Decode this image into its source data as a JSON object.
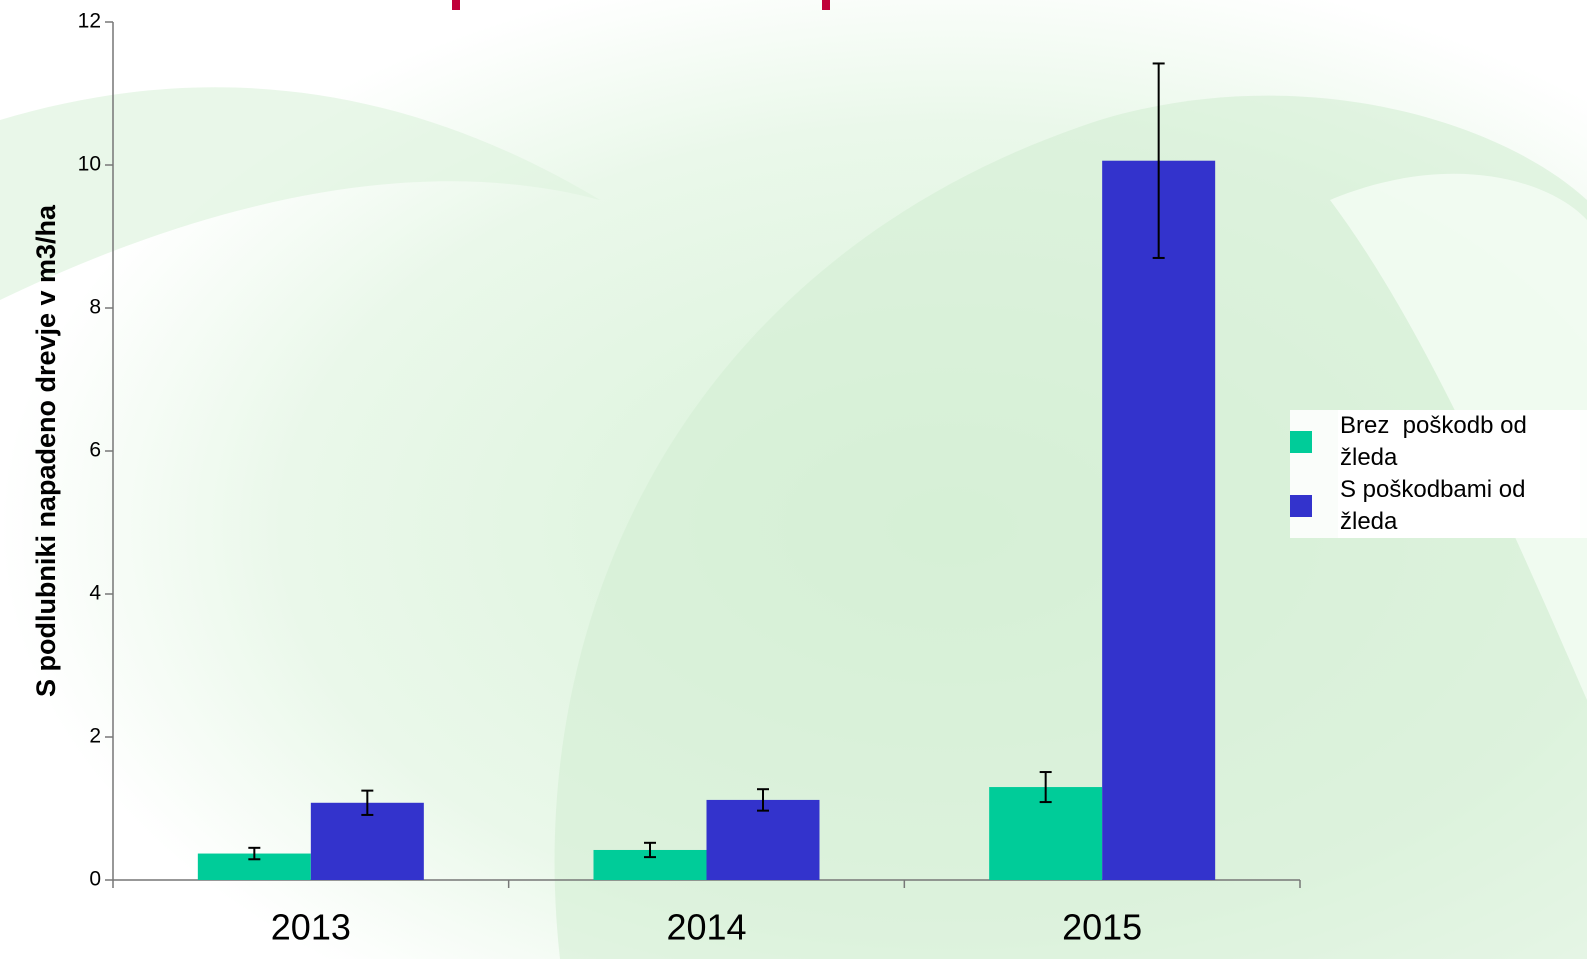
{
  "chart_data": {
    "type": "bar",
    "ylabel": "S podlubniki napadeno drevje v m3/ha",
    "categories": [
      "2013",
      "2014",
      "2015"
    ],
    "series": [
      {
        "name": "Brez  poškodb od žleda",
        "color": "#00cc99",
        "values": [
          0.37,
          0.42,
          1.3
        ],
        "errors": [
          0.08,
          0.1,
          0.21
        ]
      },
      {
        "name": "S poškodbami od žleda",
        "color": "#3333cc",
        "values": [
          1.08,
          1.12,
          10.06
        ],
        "errors": [
          0.17,
          0.15,
          1.36
        ]
      }
    ],
    "ylim": [
      0,
      12
    ],
    "yticks": [
      0,
      2,
      4,
      6,
      8,
      10,
      12
    ]
  }
}
